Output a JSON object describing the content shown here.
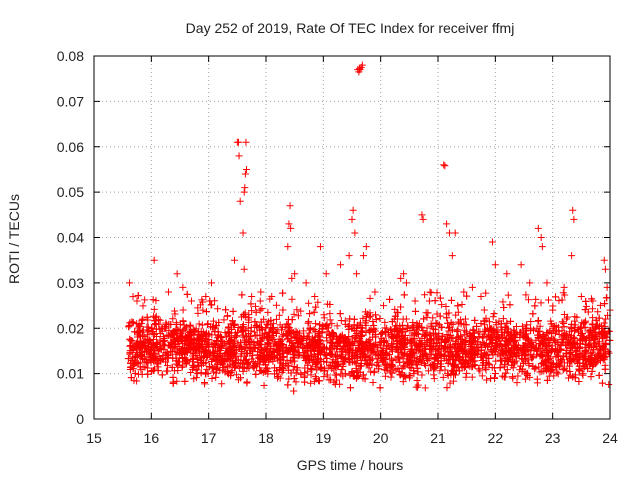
{
  "chart_data": {
    "type": "scatter",
    "title": "Day 252 of 2019, Rate Of TEC Index for receiver ffmj",
    "xlabel": "GPS time / hours",
    "ylabel": "ROTI / TECUs",
    "xlim": [
      15,
      24
    ],
    "ylim": [
      0,
      0.08
    ],
    "xticks": [
      15,
      16,
      17,
      18,
      19,
      20,
      21,
      22,
      23,
      24
    ],
    "yticks": [
      0,
      0.01,
      0.02,
      0.03,
      0.04,
      0.05,
      0.06,
      0.07,
      0.08
    ],
    "xtick_labels": [
      "15",
      "16",
      "17",
      "18",
      "19",
      "20",
      "21",
      "22",
      "23",
      "24"
    ],
    "ytick_labels": [
      "0",
      "0.01",
      "0.02",
      "0.03",
      "0.04",
      "0.05",
      "0.06",
      "0.07",
      "0.08"
    ],
    "grid": true,
    "marker": "+",
    "marker_color": "#ff0000",
    "data_range_x": [
      15.6,
      24
    ],
    "dense_band_y": [
      0.003,
      0.025
    ],
    "series": [
      {
        "name": "ROTI",
        "points": [
          [
            15.62,
            0.03
          ],
          [
            15.75,
            0.026
          ],
          [
            15.85,
            0.022
          ],
          [
            16.05,
            0.035
          ],
          [
            16.3,
            0.028
          ],
          [
            16.45,
            0.032
          ],
          [
            16.55,
            0.029
          ],
          [
            16.7,
            0.026
          ],
          [
            16.95,
            0.027
          ],
          [
            17.05,
            0.03
          ],
          [
            17.45,
            0.035
          ],
          [
            17.5,
            0.061
          ],
          [
            17.52,
            0.061
          ],
          [
            17.53,
            0.058
          ],
          [
            17.55,
            0.048
          ],
          [
            17.6,
            0.041
          ],
          [
            17.62,
            0.033
          ],
          [
            17.65,
            0.061
          ],
          [
            17.62,
            0.05
          ],
          [
            17.63,
            0.051
          ],
          [
            17.64,
            0.054
          ],
          [
            17.66,
            0.055
          ],
          [
            17.7,
            0.023
          ],
          [
            17.9,
            0.026
          ],
          [
            18.1,
            0.027
          ],
          [
            18.4,
            0.043
          ],
          [
            18.42,
            0.047
          ],
          [
            18.43,
            0.042
          ],
          [
            18.38,
            0.038
          ],
          [
            18.5,
            0.032
          ],
          [
            18.45,
            0.031
          ],
          [
            18.7,
            0.03
          ],
          [
            18.85,
            0.027
          ],
          [
            18.95,
            0.038
          ],
          [
            19.05,
            0.032
          ],
          [
            19.3,
            0.034
          ],
          [
            19.45,
            0.036
          ],
          [
            19.5,
            0.044
          ],
          [
            19.52,
            0.046
          ],
          [
            19.55,
            0.041
          ],
          [
            19.58,
            0.032
          ],
          [
            19.6,
            0.077
          ],
          [
            19.62,
            0.0765
          ],
          [
            19.64,
            0.077
          ],
          [
            19.66,
            0.0775
          ],
          [
            19.68,
            0.078
          ],
          [
            19.63,
            0.0772
          ],
          [
            19.7,
            0.036
          ],
          [
            19.75,
            0.038
          ],
          [
            19.9,
            0.028
          ],
          [
            20.05,
            0.025
          ],
          [
            20.35,
            0.031
          ],
          [
            20.4,
            0.032
          ],
          [
            20.45,
            0.03
          ],
          [
            20.6,
            0.026
          ],
          [
            20.72,
            0.045
          ],
          [
            20.74,
            0.044
          ],
          [
            20.85,
            0.026
          ],
          [
            21.1,
            0.056
          ],
          [
            21.12,
            0.0558
          ],
          [
            21.15,
            0.043
          ],
          [
            21.2,
            0.041
          ],
          [
            21.25,
            0.036
          ],
          [
            21.3,
            0.041
          ],
          [
            21.45,
            0.028
          ],
          [
            21.6,
            0.029
          ],
          [
            21.75,
            0.027
          ],
          [
            21.95,
            0.039
          ],
          [
            22.0,
            0.034
          ],
          [
            22.2,
            0.032
          ],
          [
            22.45,
            0.034
          ],
          [
            22.6,
            0.03
          ],
          [
            22.75,
            0.042
          ],
          [
            22.8,
            0.04
          ],
          [
            22.82,
            0.038
          ],
          [
            22.9,
            0.03
          ],
          [
            23.0,
            0.024
          ],
          [
            23.2,
            0.029
          ],
          [
            23.35,
            0.046
          ],
          [
            23.37,
            0.044
          ],
          [
            23.33,
            0.036
          ],
          [
            23.5,
            0.027
          ],
          [
            23.7,
            0.026
          ],
          [
            23.9,
            0.035
          ],
          [
            23.92,
            0.033
          ],
          [
            23.95,
            0.029
          ],
          [
            24.0,
            0.024
          ]
        ]
      }
    ]
  }
}
